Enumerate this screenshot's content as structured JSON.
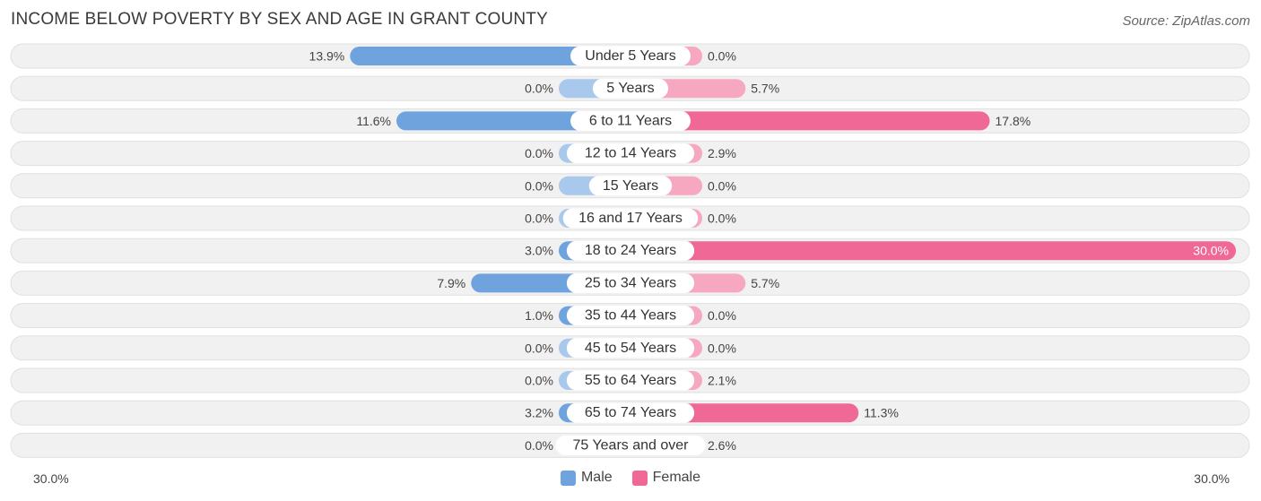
{
  "title": "INCOME BELOW POVERTY BY SEX AND AGE IN GRANT COUNTY",
  "source": "Source: ZipAtlas.com",
  "colors": {
    "male": "#6fa3dd",
    "male_light": "#a8c8ec",
    "female": "#f06895",
    "female_light": "#f7a8c1",
    "row_bg": "#f1f1f1",
    "row_border": "#e0e0e0"
  },
  "legend": {
    "male": "Male",
    "female": "Female"
  },
  "axis": {
    "left_label": "30.0%",
    "right_label": "30.0%"
  },
  "chart_data": {
    "type": "bar",
    "orientation": "horizontal-diverging",
    "title": "INCOME BELOW POVERTY BY SEX AND AGE IN GRANT COUNTY",
    "xlim": [
      -30,
      30
    ],
    "categories": [
      "Under 5 Years",
      "5 Years",
      "6 to 11 Years",
      "12 to 14 Years",
      "15 Years",
      "16 and 17 Years",
      "18 to 24 Years",
      "25 to 34 Years",
      "35 to 44 Years",
      "45 to 54 Years",
      "55 to 64 Years",
      "65 to 74 Years",
      "75 Years and over"
    ],
    "series": [
      {
        "name": "Male",
        "values": [
          13.9,
          0.0,
          11.6,
          0.0,
          0.0,
          0.0,
          3.0,
          7.9,
          1.0,
          0.0,
          0.0,
          3.2,
          0.0
        ],
        "labels": [
          "13.9%",
          "0.0%",
          "11.6%",
          "0.0%",
          "0.0%",
          "0.0%",
          "3.0%",
          "7.9%",
          "1.0%",
          "0.0%",
          "0.0%",
          "3.2%",
          "0.0%"
        ]
      },
      {
        "name": "Female",
        "values": [
          0.0,
          5.7,
          17.8,
          2.9,
          0.0,
          0.0,
          30.0,
          5.7,
          0.0,
          0.0,
          2.1,
          11.3,
          2.6
        ],
        "labels": [
          "0.0%",
          "5.7%",
          "17.8%",
          "2.9%",
          "0.0%",
          "0.0%",
          "30.0%",
          "5.7%",
          "0.0%",
          "0.0%",
          "2.1%",
          "11.3%",
          "2.6%"
        ]
      }
    ]
  }
}
